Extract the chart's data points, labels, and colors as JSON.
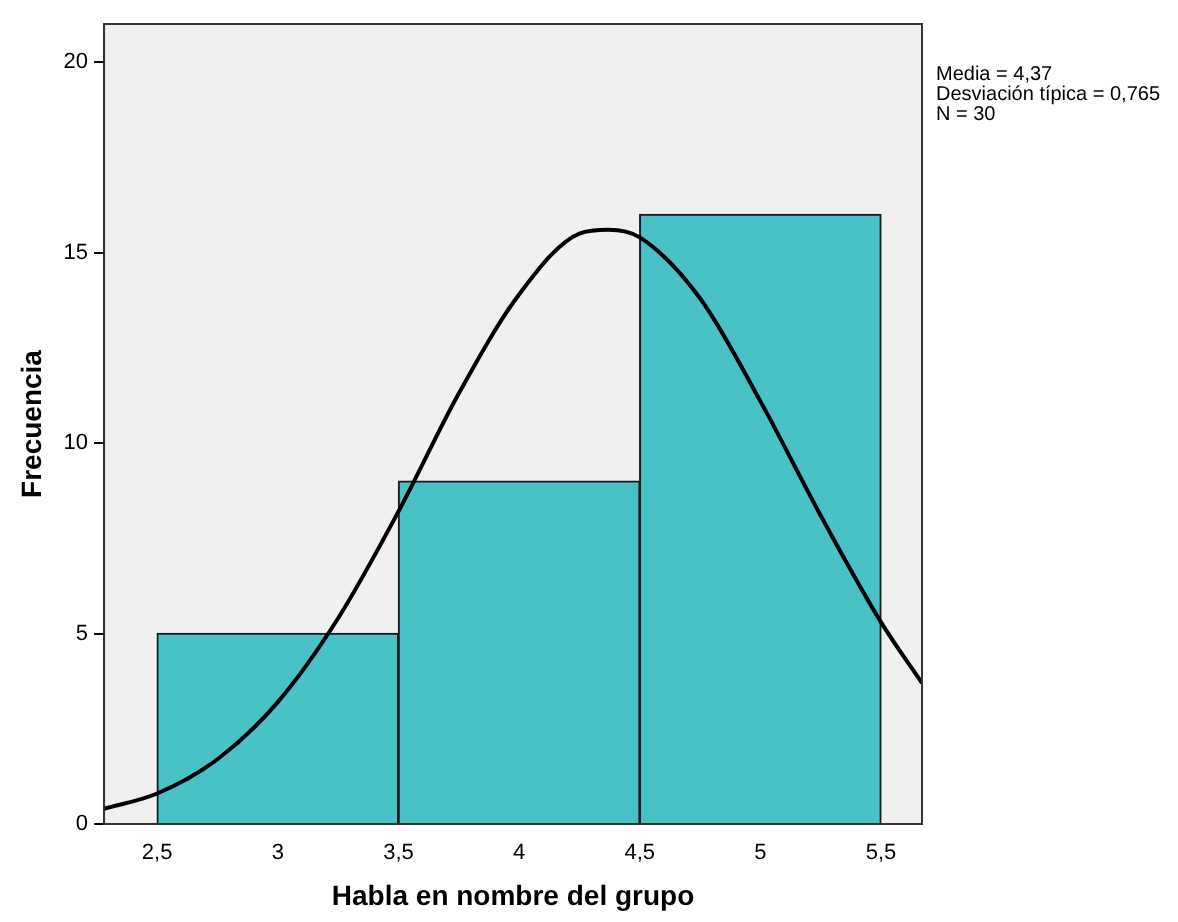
{
  "chart_data": {
    "type": "histogram",
    "xlabel": "Habla en nombre del grupo",
    "ylabel": "Frecuencia",
    "bins": [
      2.5,
      3.5,
      4.5,
      5.5
    ],
    "values": [
      5,
      9,
      16
    ],
    "color": "#48c2c6",
    "series": [
      {
        "type": "line",
        "color": "#000000",
        "x": [
          2.28,
          2.5,
          2.75,
          3,
          3.25,
          3.5,
          3.75,
          4,
          4.25,
          4.37,
          4.5,
          4.75,
          5,
          5.25,
          5.5,
          5.67
        ],
        "values": [
          0.4,
          0.8,
          1.7,
          3.2,
          5.4,
          8.2,
          11.3,
          13.9,
          15.5,
          15.6,
          15.4,
          13.8,
          11.1,
          8.1,
          5.3,
          3.7
        ]
      }
    ],
    "marker": "none",
    "xlim": [
      2.28,
      5.67
    ],
    "xticks": [
      {
        "value": 2.5,
        "label": "2,5"
      },
      3,
      {
        "value": 3.5,
        "label": "3,5"
      },
      4,
      {
        "value": 4.5,
        "label": "4,5"
      },
      5,
      {
        "value": 5.5,
        "label": "5,5"
      }
    ],
    "ylim": [
      0,
      21
    ],
    "yticks": [
      0,
      5,
      10,
      15,
      20
    ],
    "annotations": [
      "Media = 4,37",
      "Desviación típica = 0,765",
      "N = 30"
    ]
  }
}
